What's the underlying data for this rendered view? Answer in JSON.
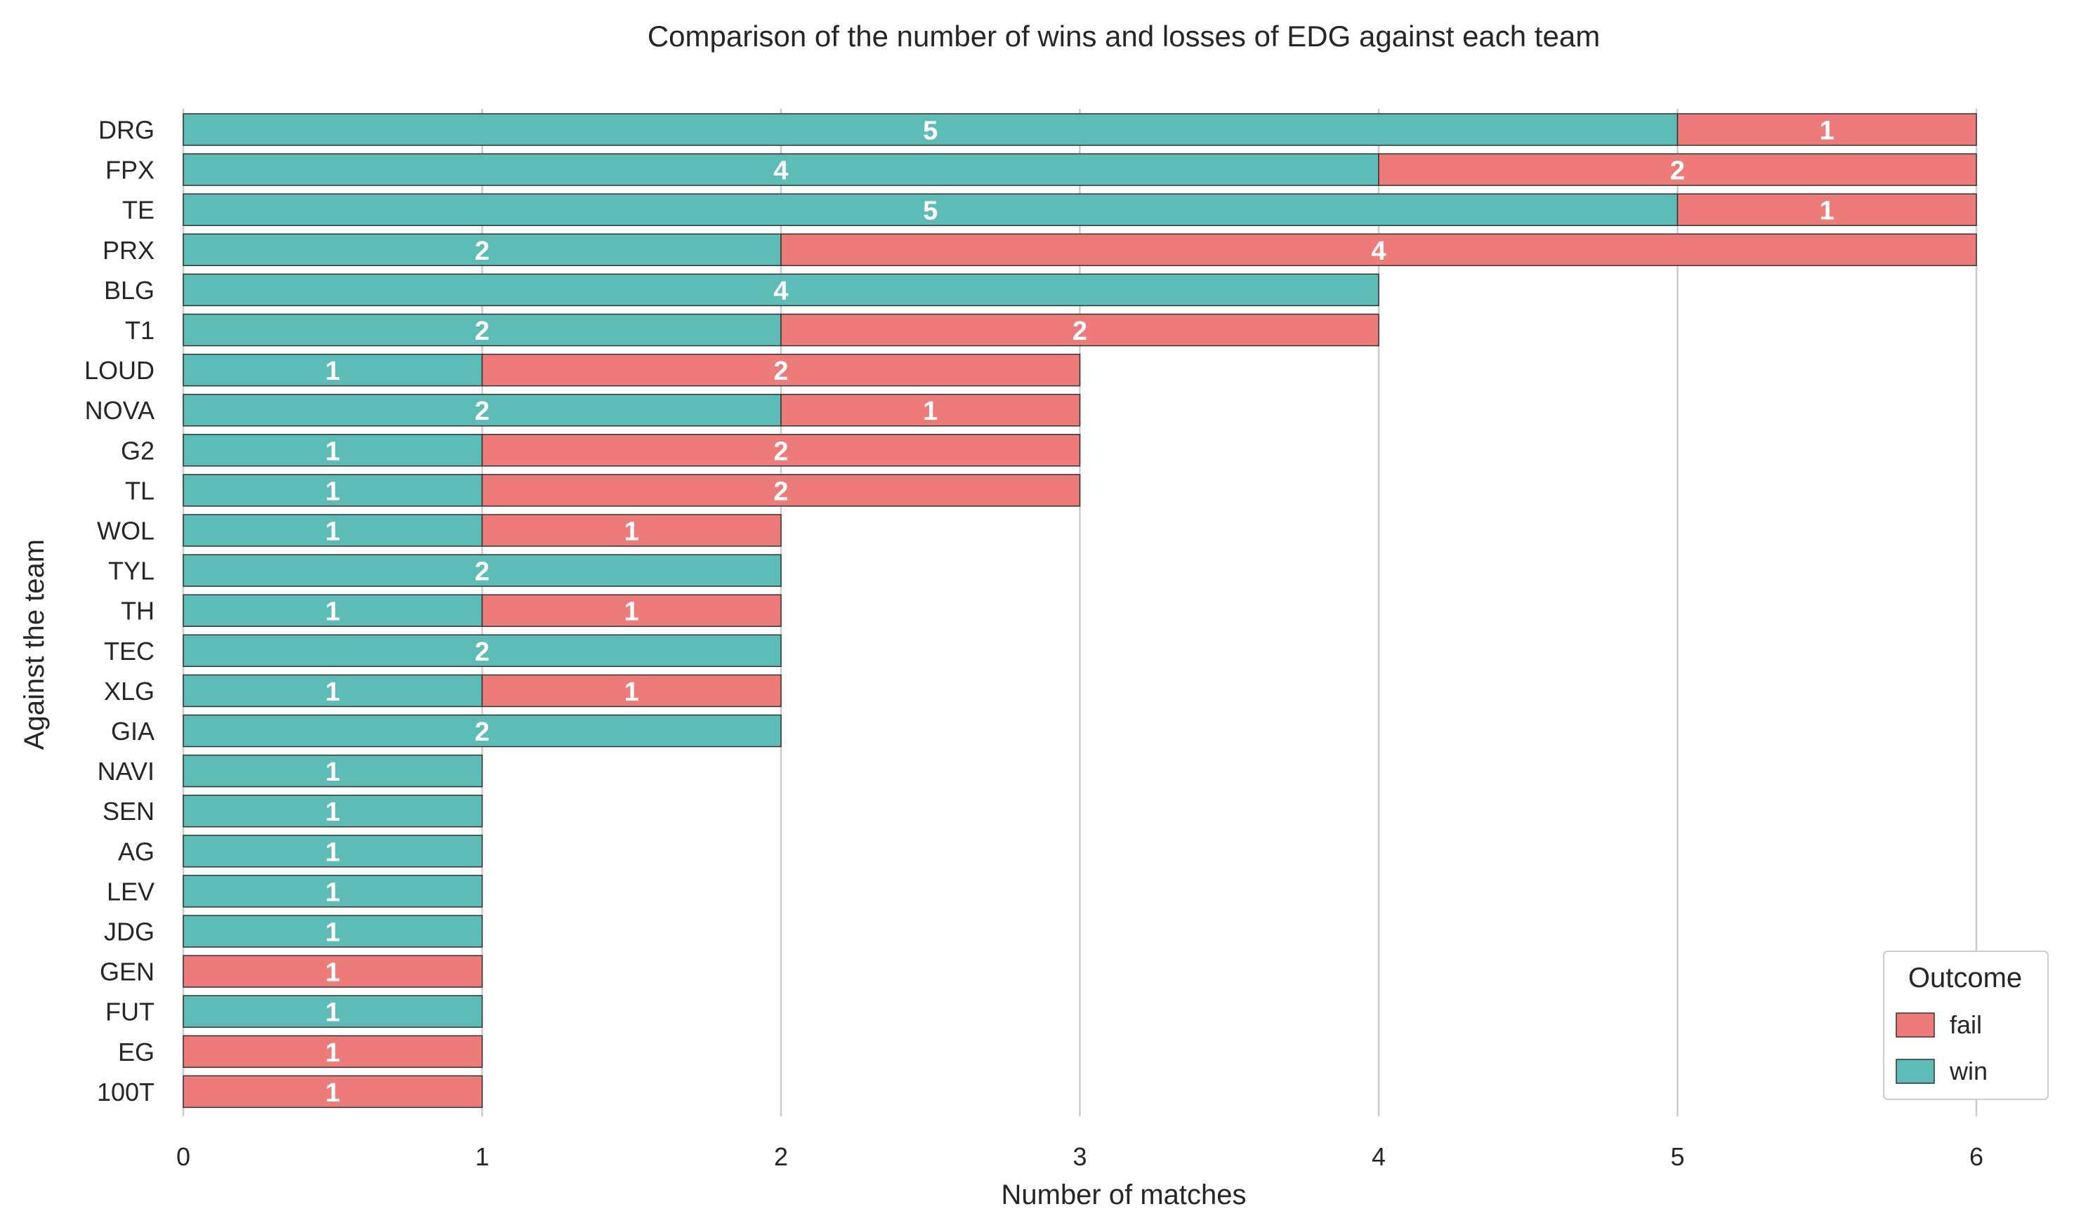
{
  "chart_data": {
    "type": "bar",
    "orientation": "horizontal",
    "stacked": true,
    "title": "Comparison of the number of wins and losses of EDG against each team",
    "xlabel": "Number of matches",
    "ylabel": "Against the team",
    "xlim": [
      0,
      6
    ],
    "xticks": [
      "0",
      "1",
      "2",
      "3",
      "4",
      "5",
      "6"
    ],
    "grid": "vertical",
    "categories": [
      "DRG",
      "FPX",
      "TE",
      "PRX",
      "BLG",
      "T1",
      "LOUD",
      "NOVA",
      "G2",
      "TL",
      "WOL",
      "TYL",
      "TH",
      "TEC",
      "XLG",
      "GIA",
      "NAVI",
      "SEN",
      "AG",
      "LEV",
      "JDG",
      "GEN",
      "FUT",
      "EG",
      "100T"
    ],
    "series": [
      {
        "name": "win",
        "color": "#5dbcb5",
        "values": [
          5,
          4,
          5,
          2,
          4,
          2,
          1,
          2,
          1,
          1,
          1,
          2,
          1,
          2,
          1,
          2,
          1,
          1,
          1,
          1,
          1,
          0,
          1,
          0,
          0
        ]
      },
      {
        "name": "fail",
        "color": "#ec7b7a",
        "values": [
          1,
          2,
          1,
          4,
          0,
          2,
          2,
          1,
          2,
          2,
          1,
          0,
          1,
          0,
          1,
          0,
          0,
          0,
          0,
          0,
          0,
          1,
          0,
          1,
          1
        ]
      }
    ],
    "legend": {
      "title": "Outcome",
      "placement": "lower-right",
      "entries": [
        "fail",
        "win"
      ]
    }
  }
}
